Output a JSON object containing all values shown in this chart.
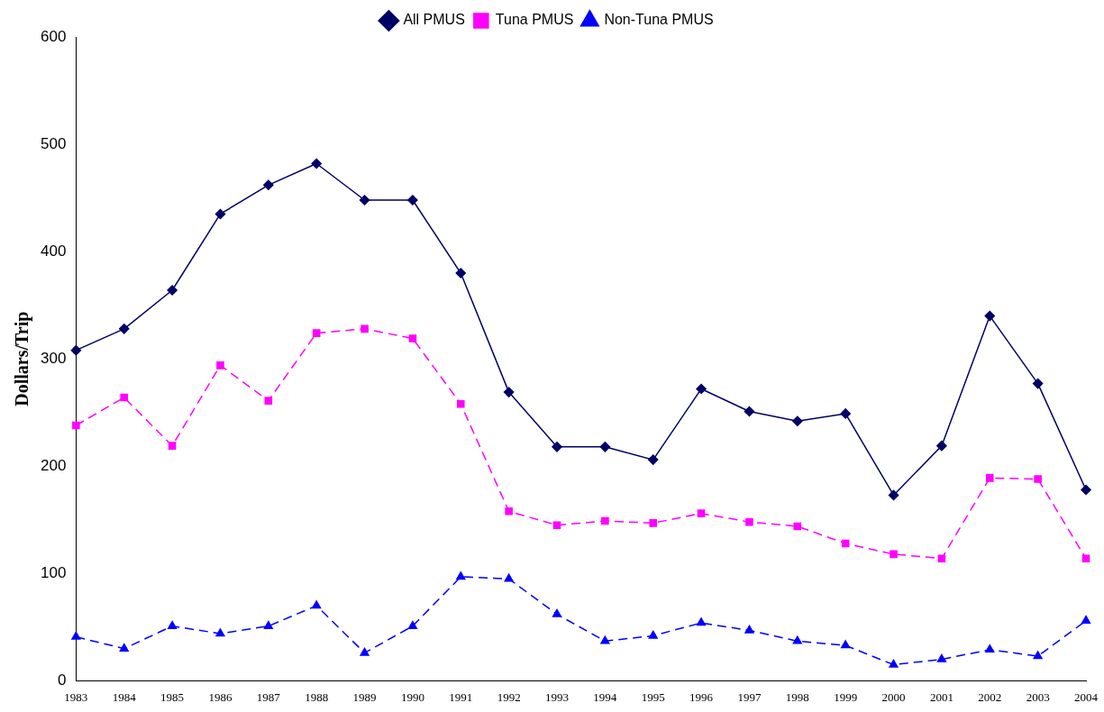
{
  "chart_data": {
    "type": "line",
    "ylabel": "Dollars/Trip",
    "categories": [
      "1983",
      "1984",
      "1985",
      "1986",
      "1987",
      "1988",
      "1989",
      "1990",
      "1991",
      "1992",
      "1993",
      "1994",
      "1995",
      "1996",
      "1997",
      "1998",
      "1999",
      "2000",
      "2001",
      "2002",
      "2003",
      "2004"
    ],
    "series": [
      {
        "name": "All PMUS",
        "color": "#000066",
        "marker": "diamond",
        "line_style": "solid",
        "values": [
          308,
          328,
          364,
          435,
          462,
          482,
          448,
          448,
          380,
          269,
          218,
          218,
          206,
          272,
          251,
          242,
          249,
          173,
          219,
          340,
          277,
          178
        ]
      },
      {
        "name": "Tuna PMUS",
        "color": "#ff00ff",
        "marker": "square",
        "line_style": "dashed",
        "values": [
          238,
          264,
          219,
          294,
          261,
          324,
          328,
          319,
          258,
          158,
          145,
          149,
          147,
          156,
          148,
          144,
          128,
          118,
          114,
          189,
          188,
          114
        ]
      },
      {
        "name": "Non-Tuna PMUS",
        "color": "#0000ff",
        "marker": "triangle",
        "line_style": "dashed",
        "values": [
          41,
          30,
          51,
          44,
          51,
          70,
          26,
          51,
          97,
          95,
          62,
          37,
          42,
          54,
          47,
          37,
          33,
          15,
          20,
          29,
          23,
          56
        ]
      }
    ],
    "ylim": [
      0,
      600
    ],
    "yticks": [
      0,
      100,
      200,
      300,
      400,
      500,
      600
    ],
    "grid": false,
    "legend": "top"
  }
}
